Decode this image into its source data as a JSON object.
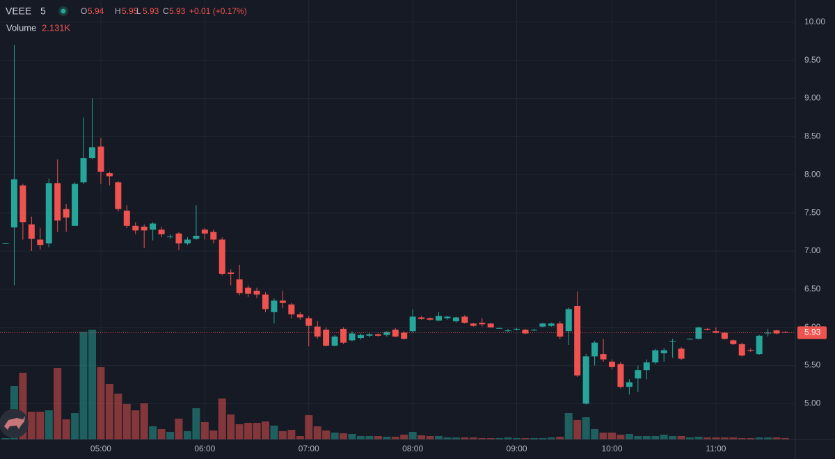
{
  "chart_data": {
    "type": "candlestick",
    "symbol": "VEEE",
    "interval": "5",
    "ohlc_labels": [
      "O",
      "H",
      "L",
      "C"
    ],
    "change_label": "+0.01 (+0.17%)",
    "up_color": "#26a69a",
    "down_color": "#ef5350",
    "grid": true,
    "ylim": [
      4.53,
      10.29
    ],
    "yticks": [
      {
        "value": 5,
        "label": "5.00"
      },
      {
        "value": 5.5,
        "label": "5.50"
      },
      {
        "value": 6,
        "label": "6.00"
      },
      {
        "value": 6.5,
        "label": "6.50"
      },
      {
        "value": 7,
        "label": "7.00"
      },
      {
        "value": 7.5,
        "label": "7.50"
      },
      {
        "value": 8,
        "label": "8.00"
      },
      {
        "value": 8.5,
        "label": "8.50"
      },
      {
        "value": 9,
        "label": "9.00"
      },
      {
        "value": 9.5,
        "label": "9.50"
      },
      {
        "value": 10,
        "label": "10.00"
      }
    ],
    "categories": [
      null,
      null,
      null,
      null,
      null,
      null,
      null,
      null,
      null,
      null,
      null,
      "05:00",
      null,
      null,
      null,
      null,
      null,
      null,
      null,
      null,
      null,
      null,
      null,
      "06:00",
      null,
      null,
      null,
      null,
      null,
      null,
      null,
      null,
      null,
      null,
      null,
      "07:00",
      null,
      null,
      null,
      null,
      null,
      null,
      null,
      null,
      null,
      null,
      null,
      "08:00",
      null,
      null,
      null,
      null,
      null,
      null,
      null,
      null,
      null,
      null,
      null,
      "09:00",
      null,
      null,
      null,
      null,
      null,
      null,
      null,
      null,
      null,
      null,
      "10:00",
      null,
      null,
      null,
      null,
      null,
      null,
      null,
      null,
      null,
      null,
      null,
      "11:00",
      null,
      null,
      null,
      null,
      null,
      null,
      null,
      null
    ],
    "open": [
      7.1,
      7.31,
      7.86,
      7.35,
      7.15,
      7.1,
      7.89,
      7.55,
      7.33,
      7.9,
      8.22,
      8.37,
      8.02,
      7.9,
      7.53,
      7.33,
      7.32,
      7.28,
      7.28,
      7.19,
      7.23,
      7.1,
      7.16,
      7.28,
      7.25,
      7.15,
      6.72,
      6.63,
      6.52,
      6.48,
      6.43,
      6.2,
      6.35,
      6.3,
      6.17,
      6.12,
      6.01,
      5.97,
      5.76,
      5.98,
      5.83,
      5.86,
      5.89,
      5.91,
      5.9,
      5.97,
      5.93,
      5.95,
      6.13,
      6.12,
      6.09,
      6.12,
      6.08,
      6.14,
      6.05,
      6.06,
      6.05,
      5.99,
      5.95,
      5.97,
      5.97,
      5.96,
      6.01,
      6.02,
      6.05,
      5.95,
      6.28,
      5.0,
      5.62,
      5.65,
      5.55,
      5.52,
      5.22,
      5.33,
      5.44,
      5.54,
      5.66,
      5.82,
      5.72,
      5.85,
      5.85,
      5.98,
      5.95,
      5.93,
      5.83,
      5.78,
      5.7,
      5.65,
      5.92,
      5.96,
      5.94
    ],
    "high": [
      7.1,
      9.7,
      7.88,
      7.45,
      7.3,
      7.95,
      8.2,
      7.62,
      7.9,
      8.75,
      9.0,
      8.48,
      8.04,
      7.92,
      7.6,
      7.38,
      7.35,
      7.38,
      7.32,
      7.22,
      7.25,
      7.18,
      7.6,
      7.3,
      7.28,
      7.18,
      6.76,
      6.82,
      6.55,
      6.52,
      6.46,
      6.38,
      6.48,
      6.32,
      6.2,
      6.15,
      6.08,
      6.0,
      5.9,
      6.0,
      5.95,
      5.92,
      5.93,
      5.92,
      5.95,
      5.99,
      5.95,
      6.24,
      6.15,
      6.13,
      6.2,
      6.15,
      6.14,
      6.16,
      6.06,
      6.12,
      6.06,
      6.0,
      5.98,
      5.99,
      5.98,
      5.98,
      6.06,
      6.06,
      6.08,
      6.26,
      6.47,
      5.65,
      5.82,
      5.85,
      5.58,
      5.55,
      5.32,
      5.5,
      5.58,
      5.72,
      5.73,
      5.85,
      5.74,
      5.86,
      6.01,
      5.99,
      6.0,
      5.94,
      5.84,
      5.8,
      5.72,
      5.9,
      5.98,
      5.97,
      5.95
    ],
    "low": [
      7.1,
      6.55,
      7.15,
      7.0,
      7.02,
      7.05,
      7.25,
      7.25,
      7.33,
      7.88,
      8.2,
      7.88,
      7.86,
      7.52,
      7.3,
      7.22,
      7.04,
      7.14,
      7.18,
      7.16,
      7.01,
      7.08,
      7.15,
      7.15,
      7.1,
      6.68,
      6.55,
      6.42,
      6.4,
      6.38,
      6.2,
      6.05,
      6.25,
      6.12,
      6.1,
      5.75,
      5.85,
      5.75,
      5.75,
      5.78,
      5.82,
      5.84,
      5.87,
      5.88,
      5.88,
      5.87,
      5.84,
      5.93,
      6.1,
      6.09,
      6.08,
      6.1,
      6.06,
      6.05,
      6.01,
      6.01,
      6.0,
      5.98,
      5.94,
      5.96,
      5.91,
      5.95,
      6.0,
      6.01,
      5.85,
      5.77,
      5.35,
      4.99,
      5.5,
      5.55,
      5.45,
      5.2,
      5.12,
      5.15,
      5.32,
      5.52,
      5.55,
      5.6,
      5.57,
      5.84,
      5.84,
      5.96,
      5.92,
      5.84,
      5.77,
      5.62,
      5.68,
      5.64,
      5.88,
      5.91,
      5.93
    ],
    "close": [
      7.1,
      7.94,
      7.38,
      7.16,
      7.08,
      7.89,
      7.4,
      7.44,
      7.88,
      8.22,
      8.36,
      8.04,
      7.98,
      7.55,
      7.33,
      7.27,
      7.27,
      7.36,
      7.22,
      7.19,
      7.1,
      7.15,
      7.2,
      7.23,
      7.15,
      6.7,
      6.7,
      6.45,
      6.44,
      6.43,
      6.24,
      6.35,
      6.32,
      6.17,
      6.13,
      6.02,
      5.88,
      5.76,
      5.88,
      5.8,
      5.92,
      5.9,
      5.91,
      5.89,
      5.94,
      5.88,
      5.85,
      6.14,
      6.11,
      6.1,
      6.15,
      6.14,
      6.13,
      6.06,
      6.02,
      6.04,
      6.0,
      5.99,
      5.96,
      5.98,
      5.92,
      5.97,
      6.05,
      6.05,
      5.88,
      6.24,
      5.37,
      5.62,
      5.8,
      5.58,
      5.48,
      5.22,
      5.28,
      5.44,
      5.54,
      5.7,
      5.7,
      5.82,
      5.59,
      5.85,
      6.0,
      5.97,
      5.93,
      5.85,
      5.78,
      5.63,
      5.69,
      5.89,
      5.93,
      5.92,
      5.93
    ],
    "volume": {
      "name": "Volume",
      "value_label": "2.131K",
      "values": [
        2000,
        77000,
        96000,
        40000,
        40000,
        42000,
        103000,
        29000,
        38000,
        155000,
        158000,
        104000,
        80000,
        66000,
        51000,
        42000,
        52000,
        19000,
        15000,
        11000,
        30000,
        12000,
        45000,
        25000,
        13000,
        59000,
        36000,
        22000,
        24000,
        24000,
        26000,
        20000,
        12000,
        14000,
        5000,
        35000,
        19000,
        13000,
        10000,
        9000,
        8000,
        5000,
        5000,
        5000,
        4000,
        4000,
        7000,
        11000,
        6000,
        5000,
        5000,
        3000,
        3000,
        3000,
        3000,
        2000,
        2000,
        2000,
        3000,
        2000,
        2000,
        2000,
        2000,
        3000,
        4000,
        38000,
        28000,
        32000,
        15000,
        10000,
        10000,
        7000,
        8000,
        5000,
        5000,
        5000,
        7000,
        5000,
        5000,
        3000,
        4000,
        3000,
        3000,
        3000,
        3000,
        2000,
        2000,
        3000,
        3000,
        3000,
        2131
      ]
    }
  }
}
